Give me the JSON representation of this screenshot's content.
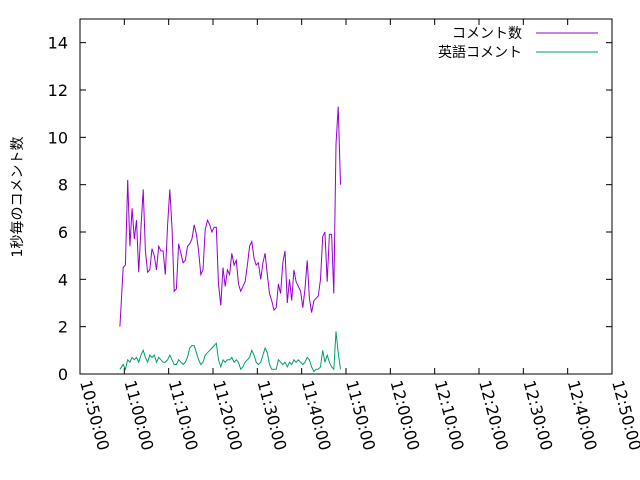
{
  "chart_data": {
    "type": "line",
    "title": "",
    "xlabel": "",
    "ylabel": "1秒毎のコメント数",
    "xlim": [
      "10:50:00",
      "12:50:00"
    ],
    "ylim": [
      0,
      15
    ],
    "x_ticks": [
      "10:50:00",
      "11:00:00",
      "11:10:00",
      "11:20:00",
      "11:30:00",
      "11:40:00",
      "11:50:00",
      "12:00:00",
      "12:10:00",
      "12:20:00",
      "12:30:00",
      "12:40:00",
      "12:50:00"
    ],
    "y_ticks": [
      0,
      2,
      4,
      6,
      8,
      10,
      12,
      14
    ],
    "grid": false,
    "legend_position": "top-right",
    "series": [
      {
        "name": "コメント数",
        "color": "#9400d3",
        "points": [
          [
            "10:59:00",
            2.0
          ],
          [
            "10:59:45",
            4.5
          ],
          [
            "11:00:15",
            4.6
          ],
          [
            "11:00:45",
            8.2
          ],
          [
            "11:01:15",
            5.4
          ],
          [
            "11:01:45",
            7.0
          ],
          [
            "11:02:15",
            5.7
          ],
          [
            "11:02:45",
            6.5
          ],
          [
            "11:03:15",
            4.3
          ],
          [
            "11:03:45",
            6.2
          ],
          [
            "11:04:15",
            7.8
          ],
          [
            "11:04:45",
            5.2
          ],
          [
            "11:05:15",
            4.3
          ],
          [
            "11:05:45",
            4.4
          ],
          [
            "11:06:15",
            5.3
          ],
          [
            "11:06:45",
            5.0
          ],
          [
            "11:07:15",
            4.4
          ],
          [
            "11:07:45",
            5.4
          ],
          [
            "11:08:15",
            5.2
          ],
          [
            "11:08:45",
            5.2
          ],
          [
            "11:09:15",
            4.2
          ],
          [
            "11:09:45",
            6.3
          ],
          [
            "11:10:15",
            7.8
          ],
          [
            "11:10:45",
            6.2
          ],
          [
            "11:11:15",
            3.5
          ],
          [
            "11:11:45",
            3.6
          ],
          [
            "11:12:15",
            5.5
          ],
          [
            "11:12:45",
            5.1
          ],
          [
            "11:13:15",
            4.7
          ],
          [
            "11:13:45",
            4.8
          ],
          [
            "11:14:15",
            5.4
          ],
          [
            "11:14:45",
            5.5
          ],
          [
            "11:15:15",
            5.7
          ],
          [
            "11:15:45",
            6.3
          ],
          [
            "11:16:15",
            5.9
          ],
          [
            "11:16:45",
            5.2
          ],
          [
            "11:17:15",
            4.2
          ],
          [
            "11:17:45",
            4.4
          ],
          [
            "11:18:15",
            6.1
          ],
          [
            "11:18:45",
            6.5
          ],
          [
            "11:19:15",
            6.3
          ],
          [
            "11:19:45",
            6.0
          ],
          [
            "11:20:15",
            6.2
          ],
          [
            "11:20:45",
            6.2
          ],
          [
            "11:21:15",
            3.8
          ],
          [
            "11:21:45",
            2.9
          ],
          [
            "11:22:15",
            4.5
          ],
          [
            "11:22:45",
            3.7
          ],
          [
            "11:23:15",
            4.4
          ],
          [
            "11:23:45",
            4.2
          ],
          [
            "11:24:15",
            5.1
          ],
          [
            "11:24:45",
            4.6
          ],
          [
            "11:25:15",
            4.8
          ],
          [
            "11:25:45",
            3.8
          ],
          [
            "11:26:15",
            3.5
          ],
          [
            "11:26:45",
            3.7
          ],
          [
            "11:27:15",
            3.9
          ],
          [
            "11:27:45",
            4.6
          ],
          [
            "11:28:15",
            5.4
          ],
          [
            "11:28:45",
            5.6
          ],
          [
            "11:29:15",
            4.9
          ],
          [
            "11:29:45",
            4.6
          ],
          [
            "11:30:15",
            4.7
          ],
          [
            "11:30:45",
            4.0
          ],
          [
            "11:31:15",
            4.7
          ],
          [
            "11:31:45",
            5.1
          ],
          [
            "11:32:15",
            4.2
          ],
          [
            "11:32:45",
            3.4
          ],
          [
            "11:33:15",
            3.1
          ],
          [
            "11:33:45",
            2.7
          ],
          [
            "11:34:15",
            2.8
          ],
          [
            "11:34:45",
            3.8
          ],
          [
            "11:35:15",
            3.4
          ],
          [
            "11:35:45",
            4.7
          ],
          [
            "11:36:15",
            5.2
          ],
          [
            "11:36:45",
            3.0
          ],
          [
            "11:37:15",
            4.0
          ],
          [
            "11:37:45",
            3.1
          ],
          [
            "11:38:15",
            4.4
          ],
          [
            "11:38:45",
            3.9
          ],
          [
            "11:39:15",
            3.7
          ],
          [
            "11:39:45",
            3.5
          ],
          [
            "11:40:15",
            2.8
          ],
          [
            "11:40:45",
            3.6
          ],
          [
            "11:41:15",
            4.8
          ],
          [
            "11:41:45",
            3.2
          ],
          [
            "11:42:15",
            2.6
          ],
          [
            "11:42:45",
            3.1
          ],
          [
            "11:43:15",
            3.2
          ],
          [
            "11:43:45",
            3.3
          ],
          [
            "11:44:15",
            4.0
          ],
          [
            "11:44:45",
            5.8
          ],
          [
            "11:45:15",
            6.0
          ],
          [
            "11:45:45",
            3.9
          ],
          [
            "11:46:15",
            5.9
          ],
          [
            "11:46:45",
            5.9
          ],
          [
            "11:47:15",
            3.4
          ],
          [
            "11:47:45",
            9.7
          ],
          [
            "11:48:15",
            11.3
          ],
          [
            "11:48:45",
            8.0
          ]
        ]
      },
      {
        "name": "英語コメント",
        "color": "#009e73",
        "points": [
          [
            "10:59:00",
            0.2
          ],
          [
            "10:59:45",
            0.4
          ],
          [
            "11:00:15",
            0.2
          ],
          [
            "11:00:45",
            0.6
          ],
          [
            "11:01:15",
            0.5
          ],
          [
            "11:01:45",
            0.7
          ],
          [
            "11:02:15",
            0.6
          ],
          [
            "11:02:45",
            0.7
          ],
          [
            "11:03:15",
            0.5
          ],
          [
            "11:03:45",
            0.8
          ],
          [
            "11:04:15",
            1.0
          ],
          [
            "11:04:45",
            0.7
          ],
          [
            "11:05:15",
            0.5
          ],
          [
            "11:05:45",
            0.8
          ],
          [
            "11:06:15",
            0.7
          ],
          [
            "11:06:45",
            0.8
          ],
          [
            "11:07:15",
            0.5
          ],
          [
            "11:07:45",
            0.7
          ],
          [
            "11:08:15",
            0.6
          ],
          [
            "11:08:45",
            0.5
          ],
          [
            "11:09:15",
            0.5
          ],
          [
            "11:09:45",
            0.6
          ],
          [
            "11:10:15",
            0.8
          ],
          [
            "11:10:45",
            0.6
          ],
          [
            "11:11:15",
            0.4
          ],
          [
            "11:11:45",
            0.4
          ],
          [
            "11:12:15",
            0.6
          ],
          [
            "11:12:45",
            0.5
          ],
          [
            "11:13:15",
            0.4
          ],
          [
            "11:13:45",
            0.5
          ],
          [
            "11:14:15",
            0.7
          ],
          [
            "11:14:45",
            1.1
          ],
          [
            "11:15:15",
            1.2
          ],
          [
            "11:15:45",
            1.2
          ],
          [
            "11:16:15",
            0.9
          ],
          [
            "11:16:45",
            0.6
          ],
          [
            "11:17:15",
            0.4
          ],
          [
            "11:17:45",
            0.5
          ],
          [
            "11:18:15",
            0.8
          ],
          [
            "11:18:45",
            0.9
          ],
          [
            "11:19:15",
            1.0
          ],
          [
            "11:19:45",
            1.1
          ],
          [
            "11:20:15",
            1.2
          ],
          [
            "11:20:45",
            1.3
          ],
          [
            "11:21:15",
            0.6
          ],
          [
            "11:21:45",
            0.3
          ],
          [
            "11:22:15",
            0.6
          ],
          [
            "11:22:45",
            0.5
          ],
          [
            "11:23:15",
            0.6
          ],
          [
            "11:23:45",
            0.6
          ],
          [
            "11:24:15",
            0.7
          ],
          [
            "11:24:45",
            0.5
          ],
          [
            "11:25:15",
            0.6
          ],
          [
            "11:25:45",
            0.5
          ],
          [
            "11:26:15",
            0.2
          ],
          [
            "11:26:45",
            0.3
          ],
          [
            "11:27:15",
            0.5
          ],
          [
            "11:27:45",
            0.6
          ],
          [
            "11:28:15",
            0.7
          ],
          [
            "11:28:45",
            1.0
          ],
          [
            "11:29:15",
            0.8
          ],
          [
            "11:29:45",
            0.5
          ],
          [
            "11:30:15",
            0.4
          ],
          [
            "11:30:45",
            0.5
          ],
          [
            "11:31:15",
            0.8
          ],
          [
            "11:31:45",
            1.1
          ],
          [
            "11:32:15",
            0.9
          ],
          [
            "11:32:45",
            0.4
          ],
          [
            "11:33:15",
            0.2
          ],
          [
            "11:33:45",
            0.2
          ],
          [
            "11:34:15",
            0.2
          ],
          [
            "11:34:45",
            0.6
          ],
          [
            "11:35:15",
            0.5
          ],
          [
            "11:35:45",
            0.4
          ],
          [
            "11:36:15",
            0.5
          ],
          [
            "11:36:45",
            0.3
          ],
          [
            "11:37:15",
            0.5
          ],
          [
            "11:37:45",
            0.4
          ],
          [
            "11:38:15",
            0.6
          ],
          [
            "11:38:45",
            0.5
          ],
          [
            "11:39:15",
            0.6
          ],
          [
            "11:39:45",
            0.5
          ],
          [
            "11:40:15",
            0.4
          ],
          [
            "11:40:45",
            0.5
          ],
          [
            "11:41:15",
            0.7
          ],
          [
            "11:41:45",
            0.6
          ],
          [
            "11:42:15",
            0.3
          ],
          [
            "11:42:45",
            0.1
          ],
          [
            "11:43:15",
            0.2
          ],
          [
            "11:43:45",
            0.2
          ],
          [
            "11:44:15",
            0.3
          ],
          [
            "11:44:45",
            1.0
          ],
          [
            "11:45:15",
            0.5
          ],
          [
            "11:45:45",
            0.8
          ],
          [
            "11:46:15",
            0.5
          ],
          [
            "11:46:45",
            0.3
          ],
          [
            "11:47:15",
            0.2
          ],
          [
            "11:47:45",
            1.8
          ],
          [
            "11:48:15",
            0.9
          ],
          [
            "11:48:45",
            0.2
          ]
        ]
      }
    ]
  }
}
